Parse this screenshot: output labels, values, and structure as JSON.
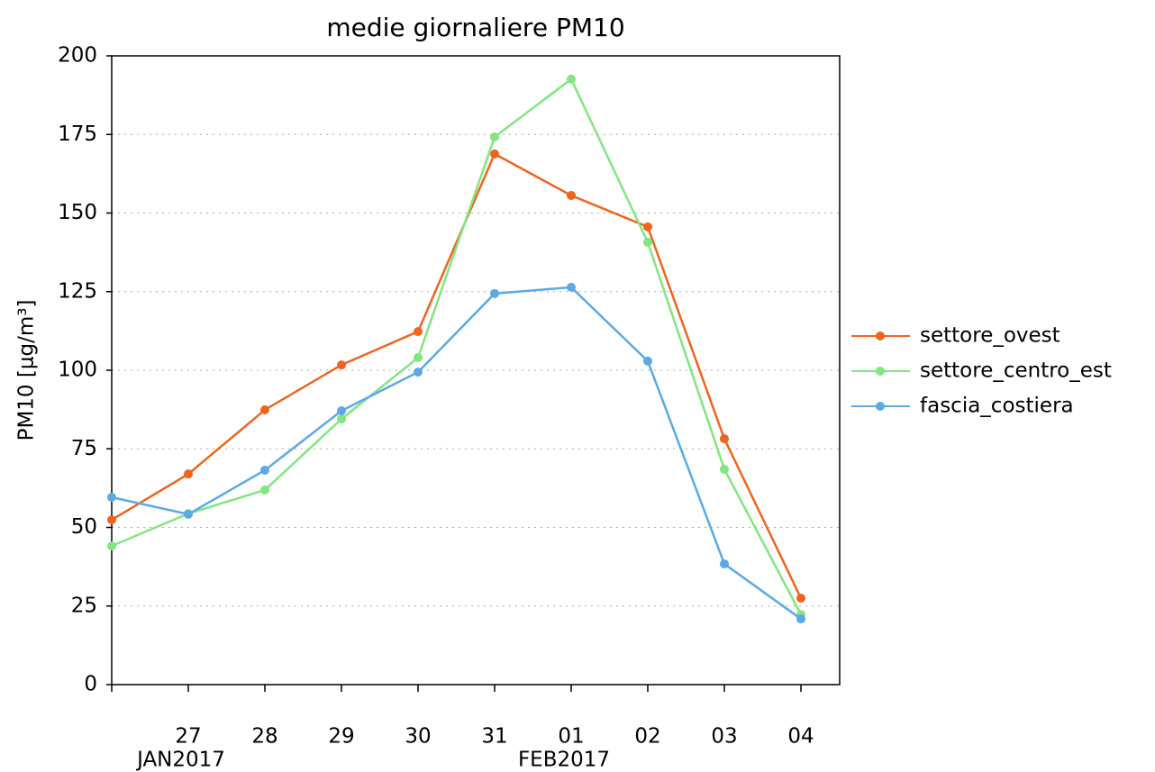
{
  "chart_data": {
    "type": "line",
    "title": "medie giornaliere PM10",
    "y_label": "PM10 [μg/m³]",
    "categories": [
      null,
      "27",
      "28",
      "29",
      "30",
      "31",
      "01",
      "02",
      "03",
      "04"
    ],
    "month_labels": [
      null,
      "JAN2017",
      null,
      null,
      null,
      null,
      "FEB2017",
      null,
      null,
      null
    ],
    "series": [
      {
        "name": "settore_ovest",
        "color": "#f0641e",
        "values": [
          52.4,
          67.0,
          87.4,
          101.7,
          112.3,
          168.8,
          155.6,
          145.6,
          78.2,
          27.5
        ]
      },
      {
        "name": "settore_centro_est",
        "color": "#82e682",
        "values": [
          44.1,
          54.4,
          61.9,
          84.5,
          104.0,
          174.2,
          192.6,
          140.7,
          68.5,
          22.3
        ]
      },
      {
        "name": "fascia_costiera",
        "color": "#5aaae6",
        "values": [
          59.6,
          54.2,
          68.2,
          87.1,
          99.4,
          124.4,
          126.4,
          102.9,
          38.4,
          20.9
        ]
      }
    ],
    "ylim": [
      0,
      200
    ],
    "yticks": [
      0,
      25,
      50,
      75,
      100,
      125,
      150,
      175,
      200
    ],
    "grid": true,
    "legend": "right"
  }
}
